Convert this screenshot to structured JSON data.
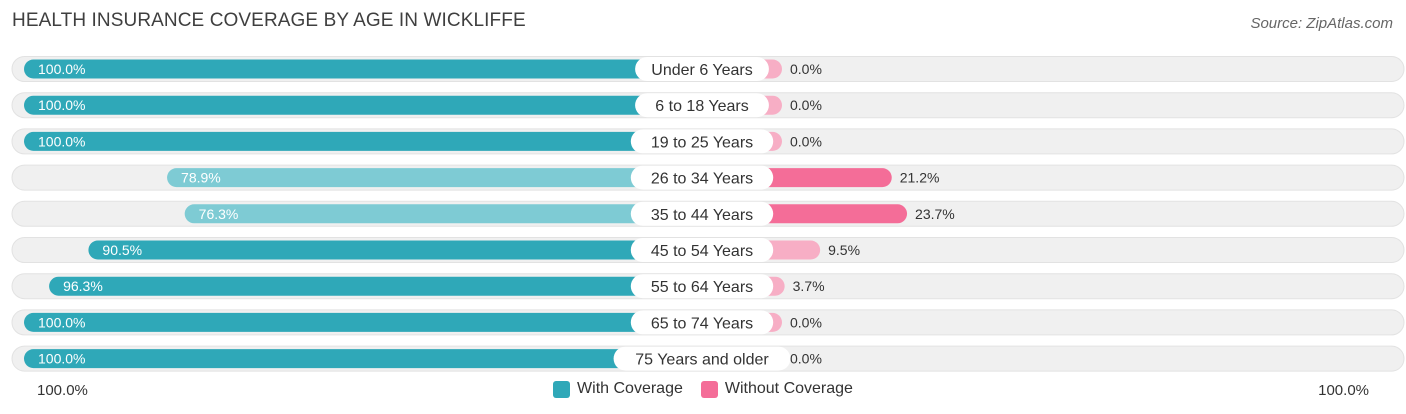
{
  "header": {
    "title": "HEALTH INSURANCE COVERAGE BY AGE IN WICKLIFFE",
    "source": "Source: ZipAtlas.com"
  },
  "colors": {
    "with_coverage_strong": "#2fa8b8",
    "with_coverage_light": "#7ecbd4",
    "without_coverage_strong": "#f46d98",
    "without_coverage_light": "#f7aec5",
    "track": "#f0f0f0"
  },
  "chart_data": {
    "type": "bar",
    "orientation": "horizontal-diverging",
    "title": "HEALTH INSURANCE COVERAGE BY AGE IN WICKLIFFE",
    "categories": [
      "Under 6 Years",
      "6 to 18 Years",
      "19 to 25 Years",
      "26 to 34 Years",
      "35 to 44 Years",
      "45 to 54 Years",
      "55 to 64 Years",
      "65 to 74 Years",
      "75 Years and older"
    ],
    "series": [
      {
        "name": "With Coverage",
        "values": [
          100.0,
          100.0,
          100.0,
          78.9,
          76.3,
          90.5,
          96.3,
          100.0,
          100.0
        ],
        "labels": [
          "100.0%",
          "100.0%",
          "100.0%",
          "78.9%",
          "76.3%",
          "90.5%",
          "96.3%",
          "100.0%",
          "100.0%"
        ]
      },
      {
        "name": "Without Coverage",
        "values": [
          0.0,
          0.0,
          0.0,
          21.2,
          23.7,
          9.5,
          3.7,
          0.0,
          0.0
        ],
        "labels": [
          "0.0%",
          "0.0%",
          "0.0%",
          "21.2%",
          "23.7%",
          "9.5%",
          "3.7%",
          "0.0%",
          "0.0%"
        ]
      }
    ],
    "xlim": [
      -100,
      100
    ],
    "axis_left_label": "100.0%",
    "axis_right_label": "100.0%",
    "legend_position": "bottom-center"
  },
  "legend": {
    "with_label": "With Coverage",
    "without_label": "Without Coverage"
  }
}
